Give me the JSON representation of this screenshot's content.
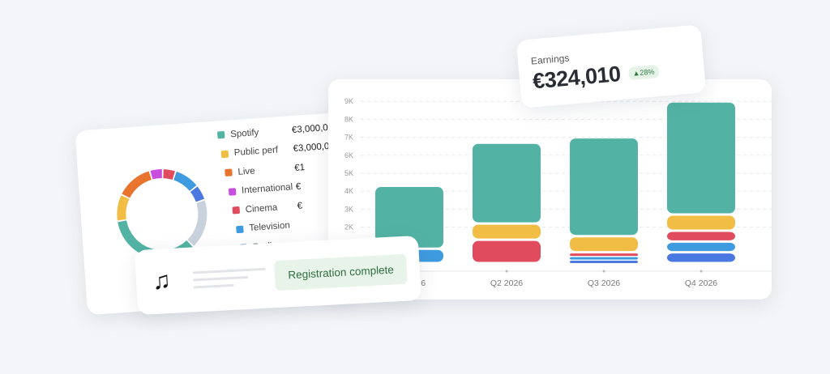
{
  "breakdown": {
    "legend": [
      {
        "name": "Spotify",
        "value": "€3,000,0",
        "color": "#52b3a4"
      },
      {
        "name": "Public perf",
        "value": "€3,000,0",
        "color": "#f2bd45"
      },
      {
        "name": "Live",
        "value": "€1",
        "color": "#e8742e"
      },
      {
        "name": "International",
        "value": "€",
        "color": "#c84ee0"
      },
      {
        "name": "Cinema",
        "value": "€",
        "color": "#e04b5e"
      },
      {
        "name": "Television",
        "value": "",
        "color": "#3f9be0"
      },
      {
        "name": "Radio",
        "value": "",
        "color": "#4a77e0"
      }
    ],
    "donut_shares_pct": [
      {
        "name": "International",
        "pct": 4.7,
        "color": "#c84ee0"
      },
      {
        "name": "Cinema",
        "pct": 4.7,
        "color": "#e04b5e"
      },
      {
        "name": "Television",
        "pct": 9.2,
        "color": "#3f9be0"
      },
      {
        "name": "Radio",
        "pct": 5.6,
        "color": "#4a77e0"
      },
      {
        "name": "other",
        "pct": 18.0,
        "color": "#c9d1dd"
      },
      {
        "name": "Spotify",
        "pct": 34.7,
        "color": "#52b3a4"
      },
      {
        "name": "Public perf",
        "pct": 9.7,
        "color": "#f2bd45"
      },
      {
        "name": "Live",
        "pct": 13.4,
        "color": "#e8742e"
      }
    ]
  },
  "chart_data": {
    "type": "bar",
    "stacked": true,
    "categories": [
      "Q1 2026",
      "Q2 2026",
      "Q3 2026",
      "Q4 2026"
    ],
    "yticks": [
      "2K",
      "3K",
      "4K",
      "5K",
      "6K",
      "7K",
      "8K",
      "9K"
    ],
    "ylim": [
      0,
      9000
    ],
    "grid": true,
    "series": [
      {
        "key": "Radio",
        "color": "#4a77e0",
        "values": [
          0,
          0,
          200,
          600
        ]
      },
      {
        "key": "Television",
        "color": "#3f9be0",
        "values": [
          800,
          0,
          200,
          600
        ]
      },
      {
        "key": "Cinema",
        "color": "#e04b5e",
        "values": [
          0,
          1300,
          200,
          600
        ]
      },
      {
        "key": "Public perf",
        "color": "#f2bd45",
        "values": [
          0,
          900,
          900,
          900
        ]
      },
      {
        "key": "Spotify",
        "color": "#52b3a4",
        "values": [
          3500,
          4500,
          5500,
          6300
        ]
      }
    ]
  },
  "earnings": {
    "label": "Earnings",
    "value": "€324,010",
    "change": "▲28%"
  },
  "notification": {
    "icon": "music-note-icon",
    "glyph": "♫",
    "status": "Registration complete"
  }
}
